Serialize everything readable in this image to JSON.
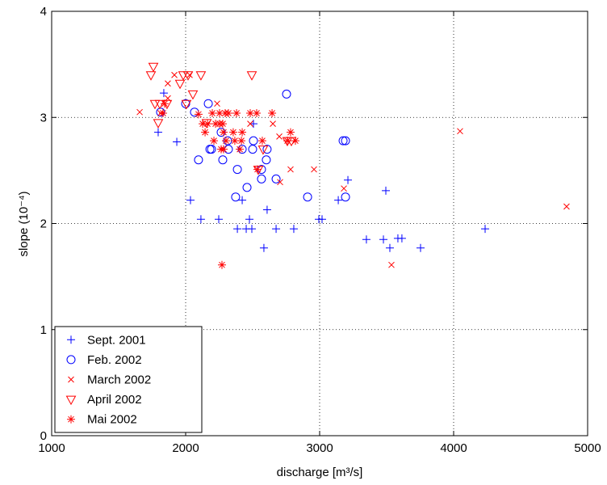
{
  "chart_data": {
    "type": "scatter",
    "xlabel": "discharge [m³/s]",
    "ylabel": "slope (10⁻⁴)",
    "xlim": [
      1000,
      5000
    ],
    "ylim": [
      0,
      4
    ],
    "xticks": [
      1000,
      2000,
      3000,
      4000,
      5000
    ],
    "yticks": [
      0,
      1,
      2,
      3,
      4
    ],
    "grid": true,
    "legend": "lower left",
    "series": [
      {
        "name": "Sept. 2001",
        "color": "#0000ff",
        "marker": "+",
        "x": [
          1795,
          1934,
          1837,
          2036,
          2114,
          2247,
          2422,
          2386,
          2452,
          2494,
          2476,
          2506,
          2608,
          2675,
          2584,
          2807,
          2994,
          3018,
          3139,
          3211,
          3494,
          3349,
          3476,
          3524,
          3584,
          3614,
          3753,
          4235
        ],
        "y": [
          2.86,
          2.77,
          3.23,
          2.22,
          2.04,
          2.04,
          2.22,
          1.95,
          1.95,
          1.95,
          2.04,
          2.94,
          2.13,
          1.95,
          1.77,
          1.95,
          2.04,
          2.04,
          2.22,
          2.41,
          2.31,
          1.85,
          1.85,
          1.77,
          1.86,
          1.86,
          1.77,
          1.95
        ]
      },
      {
        "name": "Feb. 2002",
        "color": "#0000ff",
        "marker": "o",
        "x": [
          1813,
          2000,
          2066,
          2096,
          2169,
          2181,
          2193,
          2265,
          2277,
          2313,
          2319,
          2373,
          2386,
          2422,
          2458,
          2506,
          2500,
          2566,
          2566,
          2602,
          2608,
          2675,
          2753,
          2910,
          3175,
          3193,
          3193
        ],
        "y": [
          3.05,
          3.13,
          3.05,
          2.6,
          3.13,
          2.7,
          2.7,
          2.86,
          2.6,
          2.78,
          2.7,
          2.25,
          2.51,
          2.7,
          2.34,
          2.78,
          2.7,
          2.51,
          2.42,
          2.6,
          2.7,
          2.42,
          3.22,
          2.25,
          2.78,
          2.78,
          2.25
        ]
      },
      {
        "name": "March 2002",
        "color": "#ff0000",
        "marker": "x",
        "x": [
          1657,
          1867,
          1916,
          1867,
          2030,
          1813,
          2235,
          2482,
          2651,
          2699,
          2783,
          2705,
          2958,
          3181,
          3536,
          4048,
          4843
        ],
        "y": [
          3.05,
          3.18,
          3.4,
          3.32,
          3.4,
          3.04,
          3.13,
          2.94,
          2.94,
          2.82,
          2.51,
          2.39,
          2.51,
          2.33,
          1.61,
          2.87,
          2.16
        ]
      },
      {
        "name": "April 2002",
        "color": "#ff0000",
        "marker": "v",
        "x": [
          1759,
          1741,
          1771,
          1807,
          1861,
          1795,
          1958,
          1982,
          2018,
          2006,
          2054,
          2114,
          2157,
          2494,
          2578,
          2759,
          2789,
          2542
        ],
        "y": [
          3.48,
          3.4,
          3.13,
          3.13,
          3.13,
          2.95,
          3.32,
          3.4,
          3.4,
          3.13,
          3.22,
          3.4,
          2.95,
          3.4,
          2.7,
          2.78,
          2.78,
          2.51
        ]
      },
      {
        "name": "Mai 2002",
        "color": "#ff0000",
        "marker": "*",
        "x": [
          1831,
          1843,
          2096,
          2127,
          2163,
          2199,
          2223,
          2253,
          2277,
          2253,
          2295,
          2319,
          2380,
          2482,
          2530,
          2645,
          2145,
          2283,
          2355,
          2422,
          2211,
          2301,
          2367,
          2416,
          2572,
          2759,
          2819,
          2783,
          2265,
          2283,
          2404,
          2536,
          2271
        ],
        "y": [
          3.04,
          3.13,
          3.03,
          2.94,
          2.94,
          3.04,
          2.94,
          2.94,
          2.94,
          3.04,
          3.04,
          3.04,
          3.04,
          3.04,
          3.04,
          3.04,
          2.86,
          2.86,
          2.86,
          2.86,
          2.78,
          2.78,
          2.78,
          2.78,
          2.78,
          2.78,
          2.78,
          2.86,
          2.7,
          2.7,
          2.7,
          2.51,
          1.61
        ]
      }
    ]
  }
}
